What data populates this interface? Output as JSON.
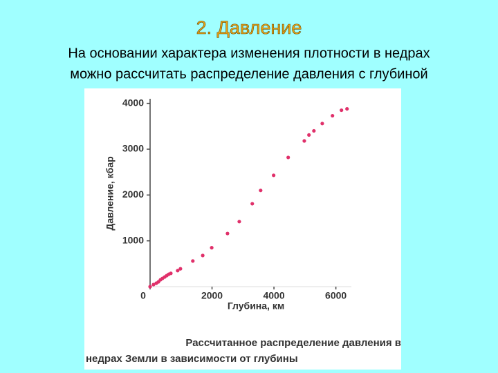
{
  "slide": {
    "title": "2. Давление",
    "text": [
      "На основании характера изменения плотности в недрах",
      "можно рассчитать распределение давления с глубиной"
    ]
  },
  "chart_data": {
    "type": "scatter",
    "x_label": "Глубина, км",
    "y_label": "Давление, кбар",
    "caption": [
      "Рассчитанное распределение давления в",
      "недрах Земли в зависимости от глубины"
    ],
    "color": "#e0306a",
    "xlim": [
      0,
      6500
    ],
    "ylim": [
      0,
      4100
    ],
    "xticks": [
      0,
      2000,
      4000,
      6000
    ],
    "yticks": [
      1000,
      2000,
      3000,
      4000
    ],
    "x": [
      0,
      110,
      200,
      270,
      335,
      400,
      470,
      535,
      600,
      670,
      890,
      980,
      1380,
      1700,
      1990,
      2500,
      2880,
      3300,
      3570,
      3990,
      4460,
      4980,
      5130,
      5290,
      5560,
      5890,
      6180,
      6360
    ],
    "values": [
      0,
      45,
      75,
      105,
      150,
      180,
      210,
      240,
      270,
      290,
      350,
      390,
      560,
      680,
      850,
      1160,
      1420,
      1810,
      2100,
      2430,
      2820,
      3180,
      3310,
      3400,
      3560,
      3730,
      3850,
      3880
    ]
  }
}
